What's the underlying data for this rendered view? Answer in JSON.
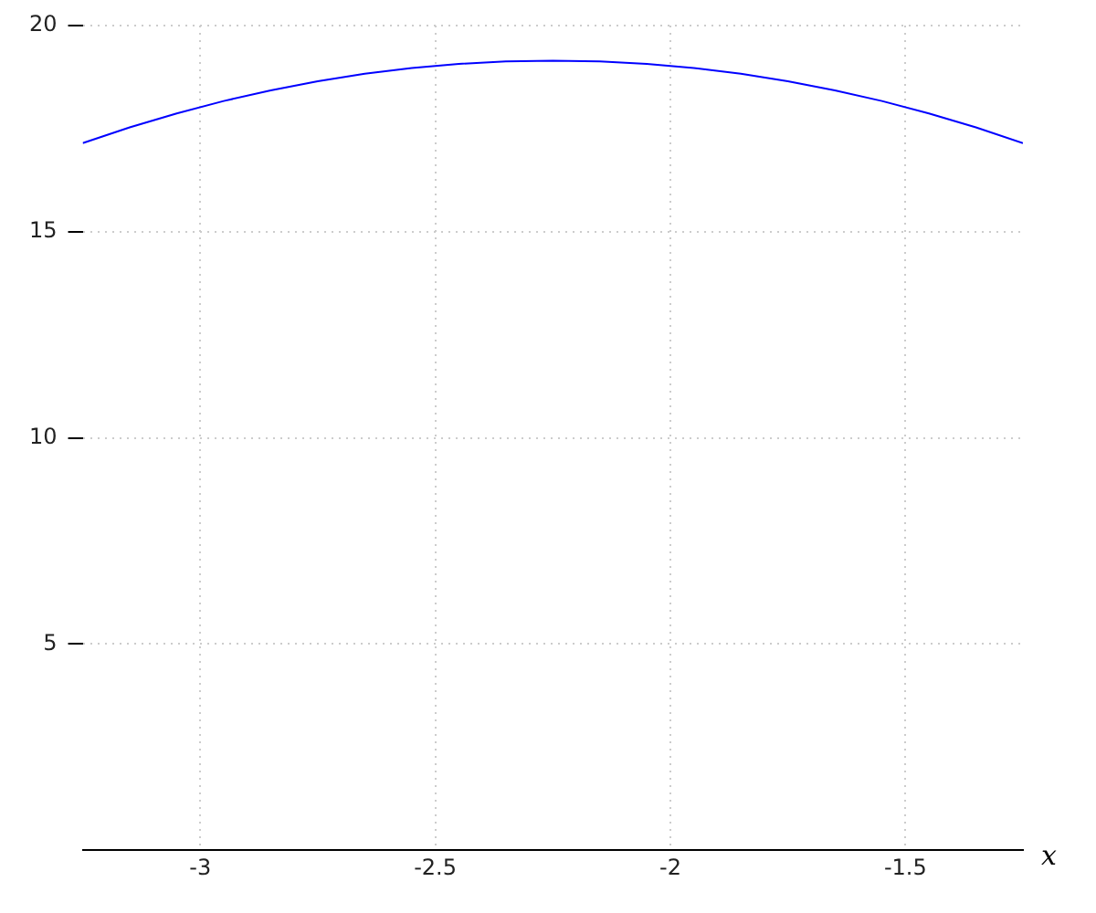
{
  "chart_data": {
    "type": "line",
    "xlabel": "x",
    "x": [
      -3.25,
      -3.15,
      -3.05,
      -2.95,
      -2.85,
      -2.75,
      -2.65,
      -2.55,
      -2.45,
      -2.35,
      -2.25,
      -2.15,
      -2.05,
      -1.95,
      -1.85,
      -1.75,
      -1.65,
      -1.55,
      -1.45,
      -1.35,
      -1.25
    ],
    "series": [
      {
        "color": "#0000ff",
        "values": [
          17.15,
          17.53,
          17.87,
          18.17,
          18.43,
          18.65,
          18.83,
          18.97,
          19.07,
          19.13,
          19.15,
          19.13,
          19.07,
          18.97,
          18.83,
          18.65,
          18.43,
          18.17,
          17.87,
          17.53,
          17.15
        ]
      }
    ],
    "xlim": [
      -3.25,
      -1.25
    ],
    "xticks": [
      -3,
      -2.5,
      -2,
      -1.5
    ],
    "ylim": [
      0,
      20
    ],
    "yticks": [
      5,
      10,
      15,
      20
    ],
    "grid": true,
    "legend": false,
    "marker": "none",
    "line_style": "solid"
  }
}
